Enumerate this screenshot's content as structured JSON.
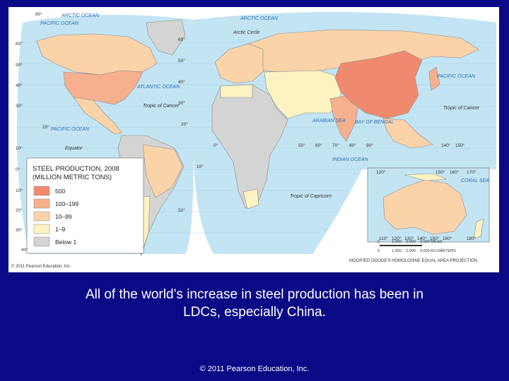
{
  "map": {
    "title": "STEEL PRODUCTION, 2008",
    "subtitle": "(MILLION METRIC TONS)",
    "legend": [
      {
        "label": "500",
        "color": "#f08a6e"
      },
      {
        "label": "100–199",
        "color": "#f6b08e"
      },
      {
        "label": "10–99",
        "color": "#fbd3a9"
      },
      {
        "label": "1–9",
        "color": "#fdf3c2"
      },
      {
        "label": "Below 1",
        "color": "#d4d4d4"
      }
    ],
    "labels": [
      "PACIFIC OCEAN",
      "ARCTIC OCEAN",
      "ARCTIC OCEAN",
      "Arctic Circle",
      "ATLANTIC OCEAN",
      "Tropic of Cancer",
      "PACIFIC OCEAN",
      "Equator",
      "PACIFIC OCEAN",
      "Tropic of Cancer",
      "ARABIAN SEA",
      "BAY OF BENGAL",
      "INDIAN OCEAN",
      "Tropic of Capricorn",
      "CORAL SEA"
    ],
    "graticule": [
      "80°",
      "60°",
      "50°",
      "40°",
      "30°",
      "20°",
      "10°",
      "0°",
      "10°",
      "20°",
      "30°",
      "40°",
      "50°",
      "60°",
      "50°",
      "40°",
      "30°",
      "20°",
      "10°",
      "0°",
      "50°",
      "60°",
      "70°",
      "80°",
      "90°",
      "140°",
      "150°",
      "120°",
      "150°",
      "160°",
      "170°",
      "110°",
      "120°",
      "130°",
      "140°",
      "150°",
      "160°",
      "180°"
    ],
    "credit": "© 2011 Pearson Education, Inc.",
    "scale_miles": [
      "0",
      "1,000",
      "2,000",
      "3,000 MILES"
    ],
    "scale_km": [
      "0",
      "1,000",
      "2,000",
      "3,000 KILOMETERS"
    ],
    "projection": "MODIFIED GOODE'S HOMOLOSINE EQUAL-AREA PROJECTION"
  },
  "caption": [
    "All of the world’s increase in steel production has been in",
    "LDCs, especially China."
  ],
  "footer": "© 2011 Pearson Education, Inc."
}
